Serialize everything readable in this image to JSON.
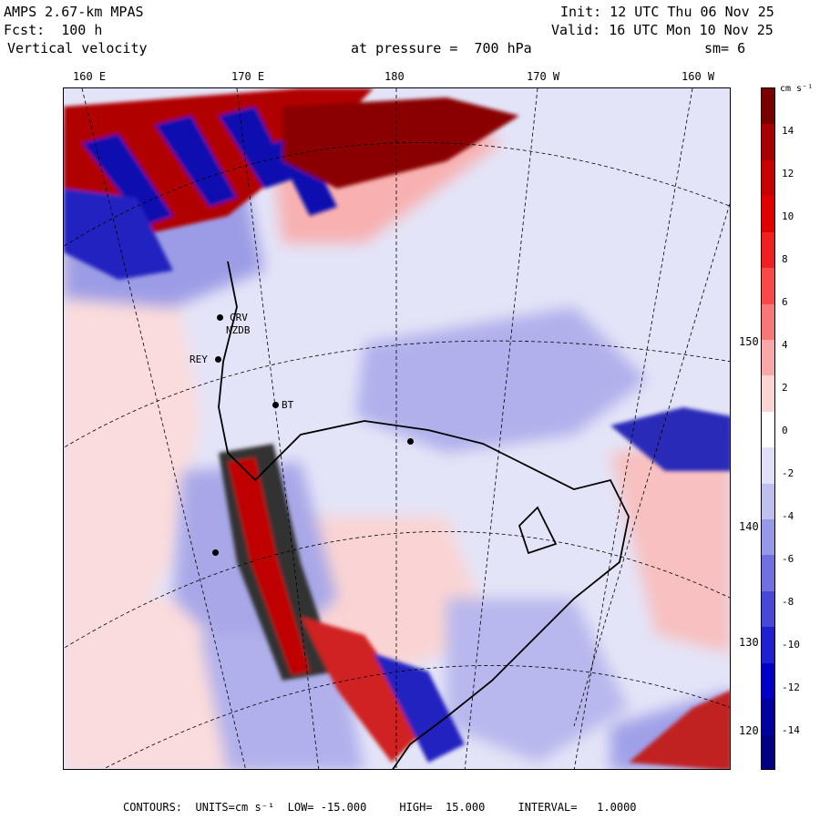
{
  "header": {
    "model": "AMPS 2.67-km MPAS",
    "forecast": "Fcst:  100 h",
    "field": "Vertical velocity",
    "init": "Init: 12 UTC Thu 06 Nov 25",
    "valid": "Valid: 16 UTC Mon 10 Nov 25",
    "pressure": "at pressure =  700 hPa",
    "smoothing": "sm= 6"
  },
  "longitude_labels": [
    "160 E",
    "170 E",
    "180",
    "170 W",
    "160 W"
  ],
  "latitude_labels": [
    "150 W",
    "140 W",
    "130 W",
    "120 W"
  ],
  "colorbar": {
    "unit": "cm s⁻¹",
    "tick_labels": [
      "14",
      "12",
      "10",
      "8",
      "6",
      "4",
      "2",
      "0",
      "-2",
      "-4",
      "-6",
      "-8",
      "-10",
      "-12",
      "-14"
    ],
    "colors": [
      "#7a0000",
      "#a80000",
      "#c80000",
      "#e00000",
      "#f02020",
      "#f84848",
      "#f87878",
      "#f8a8a8",
      "#fcd4d4",
      "#ffffff",
      "#e0e0f8",
      "#c0c0f0",
      "#9898e8",
      "#7070e0",
      "#4848d8",
      "#2020d0",
      "#0000c8",
      "#0000a0",
      "#000080"
    ]
  },
  "stations": [
    "CRV",
    "NZDB",
    "REY",
    "BT"
  ],
  "footer": {
    "contours": "CONTOURS:  UNITS=cm s⁻¹  LOW= -15.000     HIGH=  15.000     INTERVAL=   1.0000"
  }
}
